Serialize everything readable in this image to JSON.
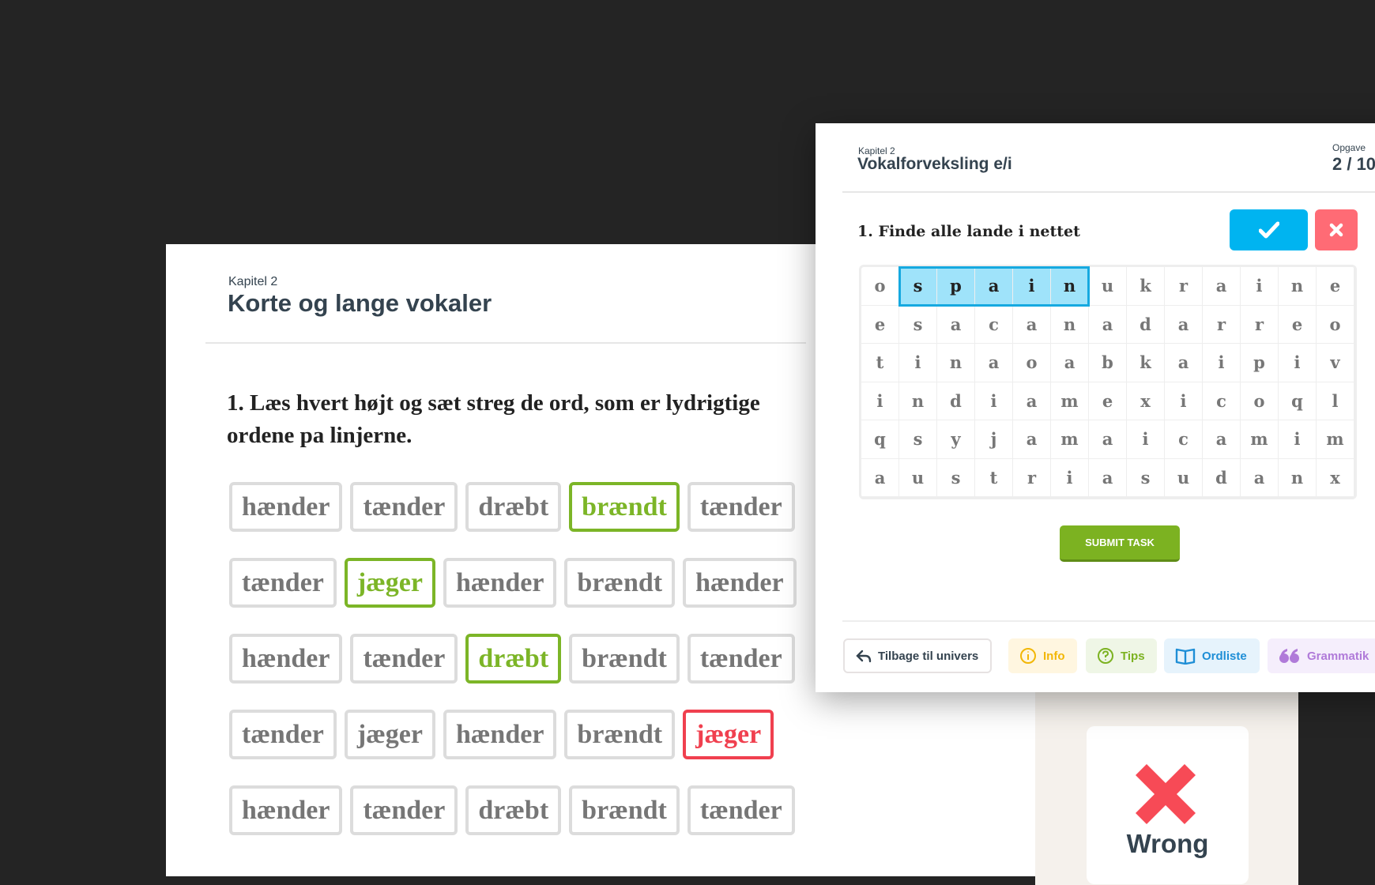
{
  "worksheet": {
    "chapter": "Kapitel 2",
    "title": "Korte og lange vokaler",
    "question": "1. Læs hvert højt og sæt streg de ord, som er lydrigtige ordene pa linjerne.",
    "rows": [
      [
        {
          "w": "hænder"
        },
        {
          "w": "tænder"
        },
        {
          "w": "dræbt"
        },
        {
          "w": "brændt",
          "s": "green"
        },
        {
          "w": "tænder"
        }
      ],
      [
        {
          "w": "tænder"
        },
        {
          "w": "jæger",
          "s": "green"
        },
        {
          "w": "hænder"
        },
        {
          "w": "brændt"
        },
        {
          "w": "hænder"
        }
      ],
      [
        {
          "w": "hænder"
        },
        {
          "w": "tænder"
        },
        {
          "w": "dræbt",
          "s": "green"
        },
        {
          "w": "brændt"
        },
        {
          "w": "tænder"
        }
      ],
      [
        {
          "w": "tænder"
        },
        {
          "w": "jæger"
        },
        {
          "w": "hænder"
        },
        {
          "w": "brændt"
        },
        {
          "w": "jæger",
          "s": "red"
        }
      ],
      [
        {
          "w": "hænder"
        },
        {
          "w": "tænder"
        },
        {
          "w": "dræbt"
        },
        {
          "w": "brændt"
        },
        {
          "w": "tænder"
        }
      ]
    ],
    "feedback": {
      "label": "Wrong",
      "icon": "x-icon",
      "color": "#f74a56"
    }
  },
  "task": {
    "chapter": "Kapitel 2",
    "title": "Vokalforveksling e/i",
    "opgave_label": "Opgave",
    "count": "2 / 10",
    "question": "1. Finde alle lande i nettet",
    "grid": [
      "ospainukraine",
      "esacanadarreo",
      "tinaoabkaipiv",
      "indiamexicoql",
      "qsyjamaicamim",
      "austriasudanx"
    ],
    "found": {
      "word": "spain",
      "row": 0,
      "cols": [
        1,
        5
      ]
    },
    "submit_label": "SUBMIT TASK",
    "colors": {
      "accent": "#00b4f0",
      "submit": "#7cb221",
      "wrong": "#ff6b75"
    }
  },
  "footer": {
    "back": "Tilbage til univers",
    "info": "Info",
    "tips": "Tips",
    "ordliste": "Ordliste",
    "grammatik": "Grammatik"
  }
}
